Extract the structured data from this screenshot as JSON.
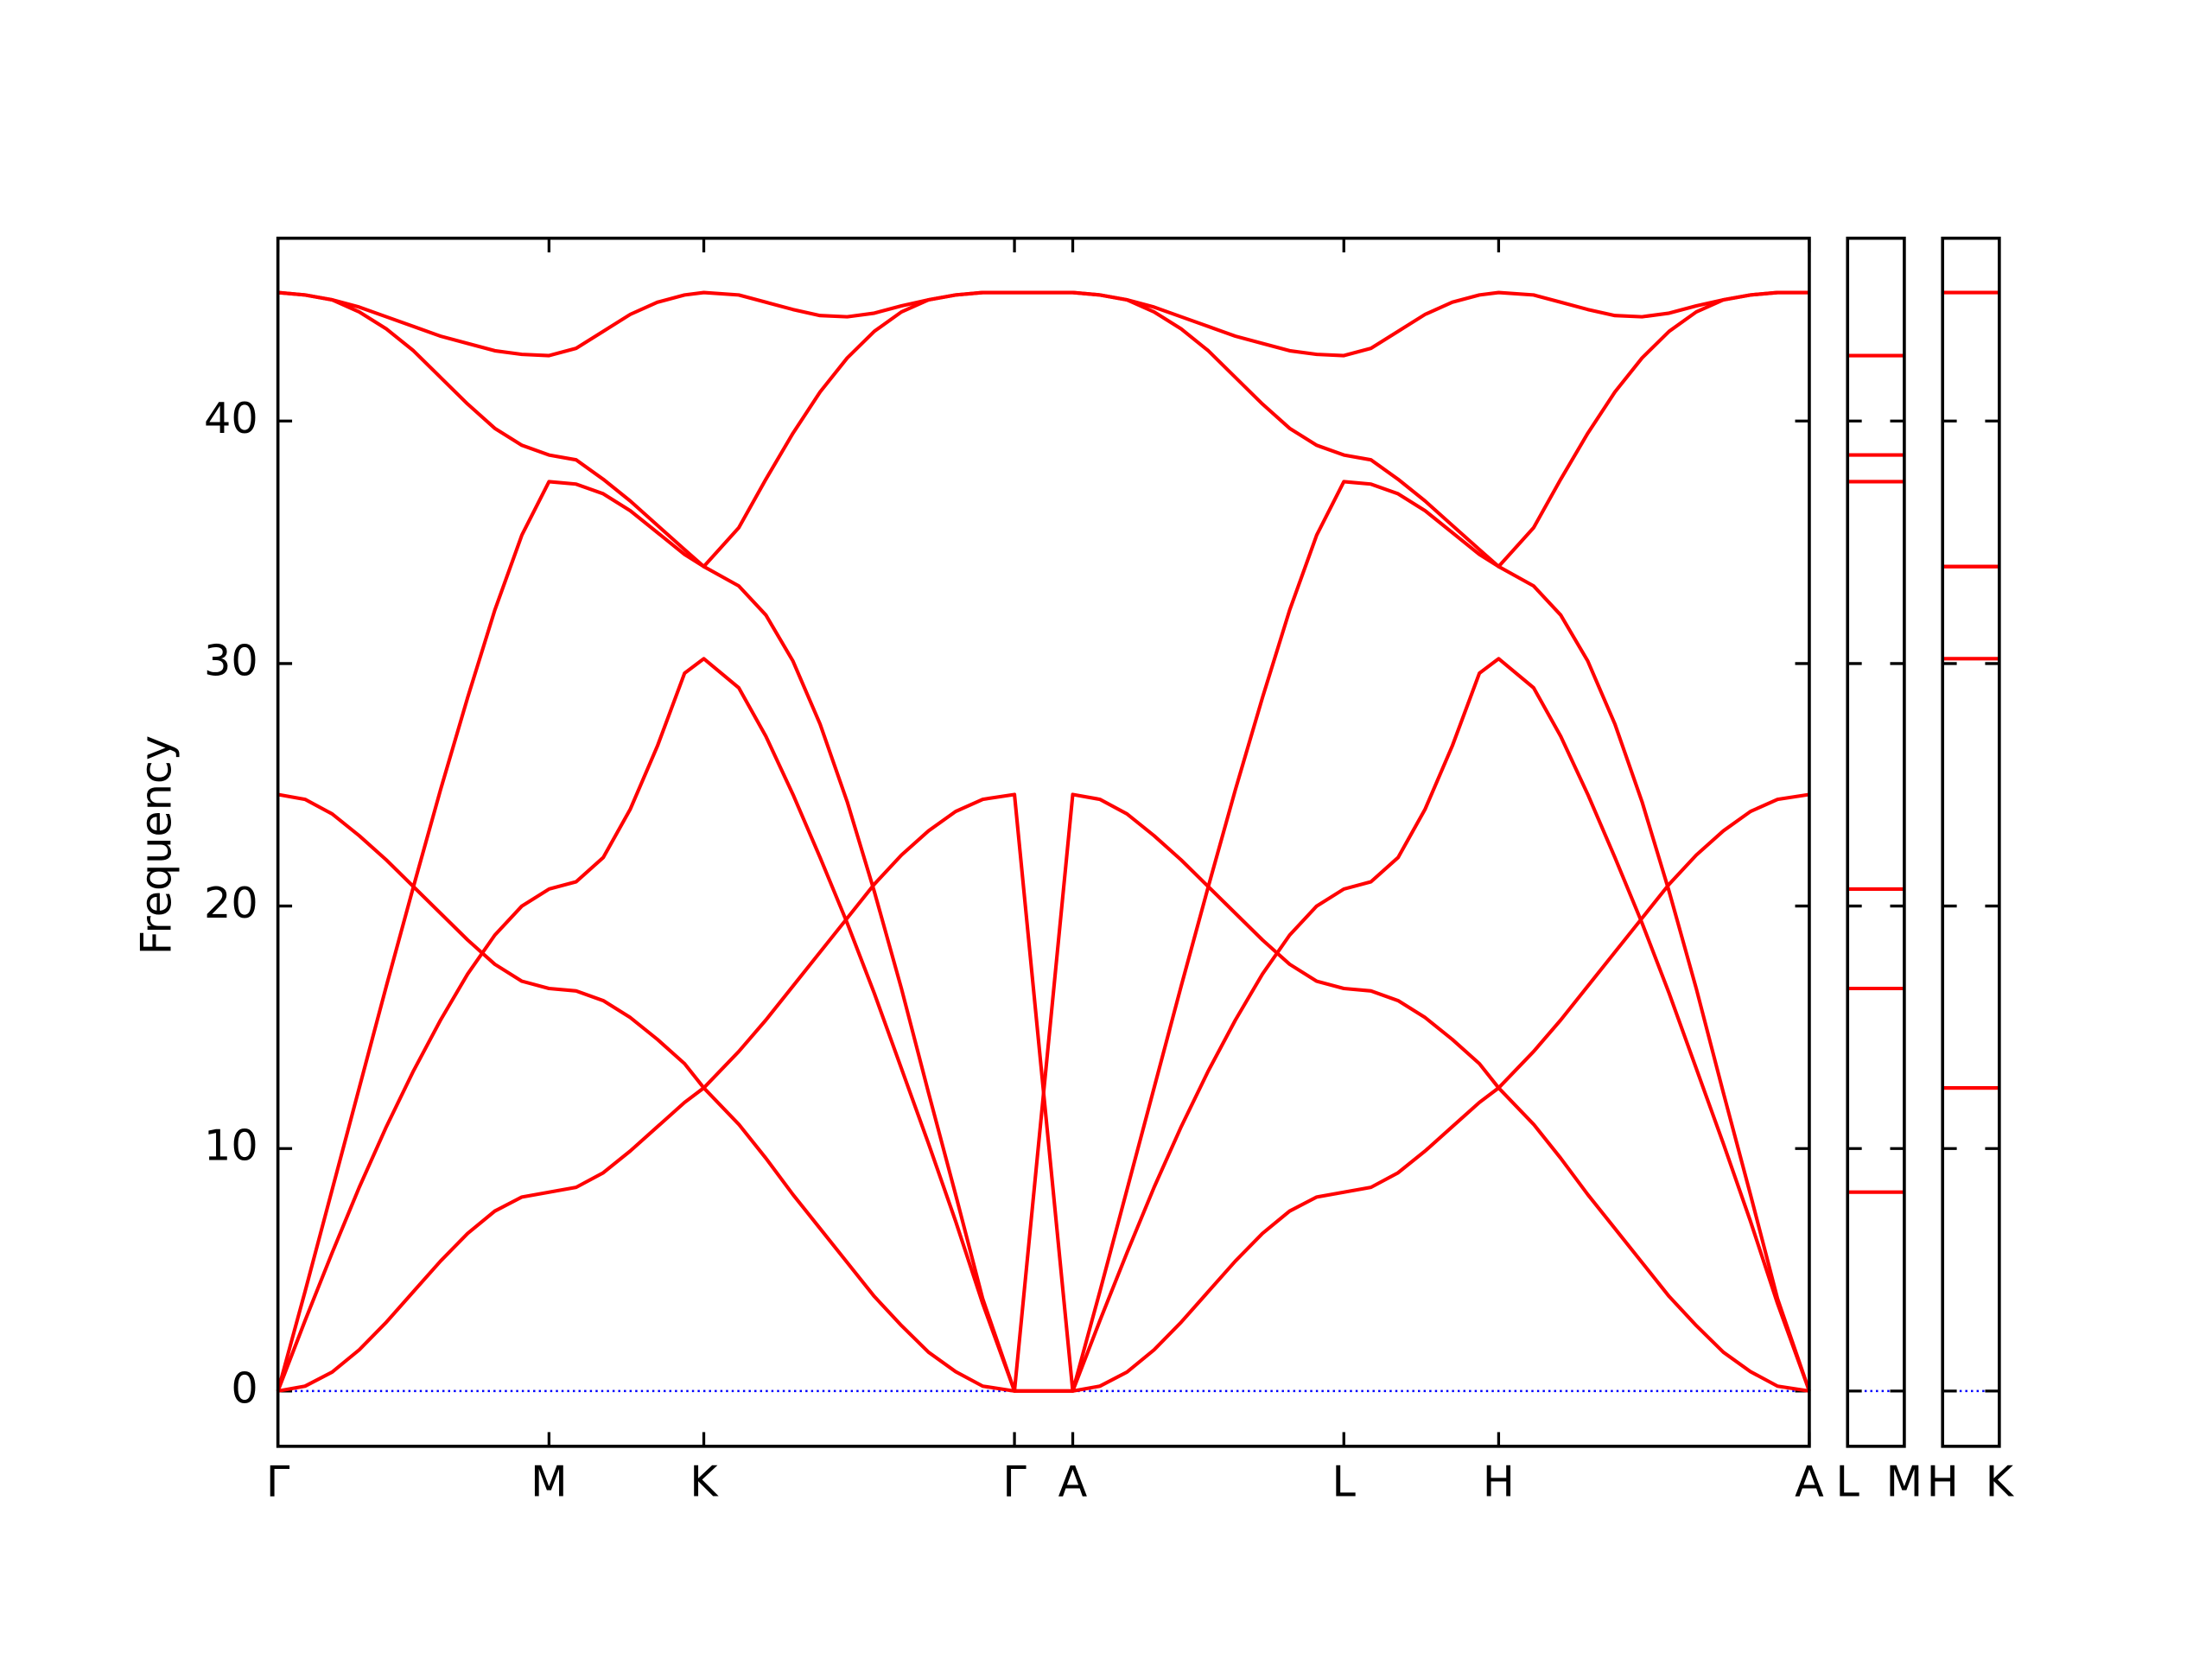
{
  "chart_data": {
    "type": "line",
    "ylabel": "Frequency",
    "x": [
      0,
      0.1,
      0.2,
      0.3,
      0.4,
      0.5,
      0.6,
      0.7,
      0.8,
      0.9,
      1.0,
      1.1,
      1.2,
      1.3,
      1.4,
      1.5,
      1.571,
      1.7,
      1.8,
      1.9,
      2.0,
      2.1,
      2.2,
      2.3,
      2.4,
      2.5,
      2.6,
      2.717,
      2.932,
      3.032,
      3.132,
      3.232,
      3.332,
      3.432,
      3.532,
      3.632,
      3.732,
      3.832,
      3.932,
      4.032,
      4.132,
      4.232,
      4.332,
      4.432,
      4.503,
      4.632,
      4.732,
      4.832,
      4.932,
      5.032,
      5.132,
      5.232,
      5.332,
      5.432,
      5.532,
      5.649
    ],
    "series": [
      {
        "color": "#ff0000",
        "values": [
          0,
          0.2,
          0.78,
          1.7,
          2.84,
          4.1,
          5.36,
          6.5,
          7.42,
          8.0,
          8.2,
          8.4,
          9.0,
          9.9,
          10.9,
          11.9,
          12.5,
          14.0,
          15.3,
          16.7,
          18.1,
          19.5,
          20.9,
          22.1,
          23.1,
          23.9,
          24.4,
          24.6,
          0,
          0.2,
          0.78,
          1.7,
          2.84,
          4.1,
          5.36,
          6.5,
          7.42,
          8.0,
          8.2,
          8.4,
          9.0,
          9.9,
          10.9,
          11.9,
          12.5,
          14.0,
          15.3,
          16.7,
          18.1,
          19.5,
          20.9,
          22.1,
          23.1,
          23.9,
          24.4,
          24.6
        ]
      },
      {
        "color": "#ff0000",
        "values": [
          24.6,
          24.4,
          23.8,
          22.9,
          21.9,
          20.8,
          19.7,
          18.6,
          17.6,
          16.9,
          16.6,
          16.5,
          16.1,
          15.4,
          14.5,
          13.5,
          12.5,
          11.0,
          9.6,
          8.1,
          6.7,
          5.3,
          3.9,
          2.7,
          1.6,
          0.8,
          0.2,
          0,
          24.6,
          24.4,
          23.8,
          22.9,
          21.9,
          20.8,
          19.7,
          18.6,
          17.6,
          16.9,
          16.6,
          16.5,
          16.1,
          15.4,
          14.5,
          13.5,
          12.5,
          11.0,
          9.6,
          8.1,
          6.7,
          5.3,
          3.9,
          2.7,
          1.6,
          0.8,
          0.2,
          0
        ]
      },
      {
        "color": "#ff0000",
        "values": [
          0,
          2.9,
          5.7,
          8.4,
          10.9,
          13.2,
          15.3,
          17.2,
          18.8,
          20.0,
          20.7,
          21.0,
          22.0,
          24.0,
          26.6,
          29.6,
          30.2,
          29.0,
          27.0,
          24.6,
          22.0,
          19.3,
          16.4,
          13.3,
          10.2,
          7.0,
          3.6,
          0,
          0,
          2.9,
          5.7,
          8.4,
          10.9,
          13.2,
          15.3,
          17.2,
          18.8,
          20.0,
          20.7,
          21.0,
          22.0,
          24.0,
          26.6,
          29.6,
          30.2,
          29.0,
          27.0,
          24.6,
          22.0,
          19.3,
          16.4,
          13.3,
          10.2,
          7.0,
          3.6,
          0
        ]
      },
      {
        "color": "#ff0000",
        "values": [
          0,
          4.1,
          8.3,
          12.5,
          16.7,
          20.8,
          24.8,
          28.6,
          32.2,
          35.3,
          37.5,
          37.4,
          37.0,
          36.3,
          35.4,
          34.5,
          34.0,
          33.2,
          32.0,
          30.1,
          27.5,
          24.3,
          20.6,
          16.6,
          12.3,
          8.1,
          3.8,
          0,
          0,
          4.1,
          8.3,
          12.5,
          16.7,
          20.8,
          24.8,
          28.6,
          32.2,
          35.3,
          37.5,
          37.4,
          37.0,
          36.3,
          35.4,
          34.5,
          34.0,
          33.2,
          32.0,
          30.1,
          27.5,
          24.3,
          20.6,
          16.6,
          12.3,
          8.1,
          3.8,
          0
        ]
      },
      {
        "color": "#ff0000",
        "values": [
          45.3,
          45.2,
          45.0,
          44.5,
          43.8,
          42.9,
          41.8,
          40.7,
          39.7,
          39.0,
          38.6,
          38.4,
          37.6,
          36.7,
          35.7,
          34.7,
          34.0,
          35.6,
          37.6,
          39.5,
          41.2,
          42.6,
          43.7,
          44.5,
          45.0,
          45.2,
          45.3,
          45.3,
          45.3,
          45.2,
          45.0,
          44.5,
          43.8,
          42.9,
          41.8,
          40.7,
          39.7,
          39.0,
          38.6,
          38.4,
          37.6,
          36.7,
          35.7,
          34.7,
          34.0,
          35.6,
          37.6,
          39.5,
          41.2,
          42.6,
          43.7,
          44.5,
          45.0,
          45.2,
          45.3,
          45.3
        ]
      },
      {
        "color": "#ff0000",
        "values": [
          45.3,
          45.2,
          45.0,
          44.7,
          44.3,
          43.9,
          43.5,
          43.2,
          42.9,
          42.75,
          42.7,
          43.0,
          43.7,
          44.4,
          44.9,
          45.2,
          45.3,
          45.2,
          44.9,
          44.6,
          44.35,
          44.3,
          44.45,
          44.75,
          45.0,
          45.2,
          45.3,
          45.3,
          45.3,
          45.2,
          45.0,
          44.7,
          44.3,
          43.9,
          43.5,
          43.2,
          42.9,
          42.75,
          42.7,
          43.0,
          43.7,
          44.4,
          44.9,
          45.2,
          45.3,
          45.2,
          44.9,
          44.6,
          44.35,
          44.3,
          44.45,
          44.75,
          45.0,
          45.2,
          45.3,
          45.3
        ]
      }
    ],
    "xlim": [
      0,
      5.649
    ],
    "xticks": [
      {
        "value": 0,
        "label": "Γ"
      },
      {
        "value": 1.0,
        "label": "M"
      },
      {
        "value": 1.571,
        "label": "K"
      },
      {
        "value": 2.717,
        "label": "Γ"
      },
      {
        "value": 2.932,
        "label": "A"
      },
      {
        "value": 3.932,
        "label": "L"
      },
      {
        "value": 4.503,
        "label": "H"
      },
      {
        "value": 5.649,
        "label": "A"
      }
    ],
    "ylim": [
      -2.28,
      47.54
    ],
    "yticks": [
      0,
      10,
      20,
      30,
      40
    ],
    "hline": {
      "y": 0,
      "color": "#0000ff"
    },
    "side_panels": [
      {
        "labels": [
          "L",
          "M"
        ],
        "values": [
          8.2,
          16.6,
          20.7,
          37.5,
          38.6,
          42.7
        ]
      },
      {
        "labels": [
          "H",
          "K"
        ],
        "values": [
          12.5,
          12.5,
          30.2,
          34.0,
          34.0,
          45.3
        ]
      }
    ]
  }
}
